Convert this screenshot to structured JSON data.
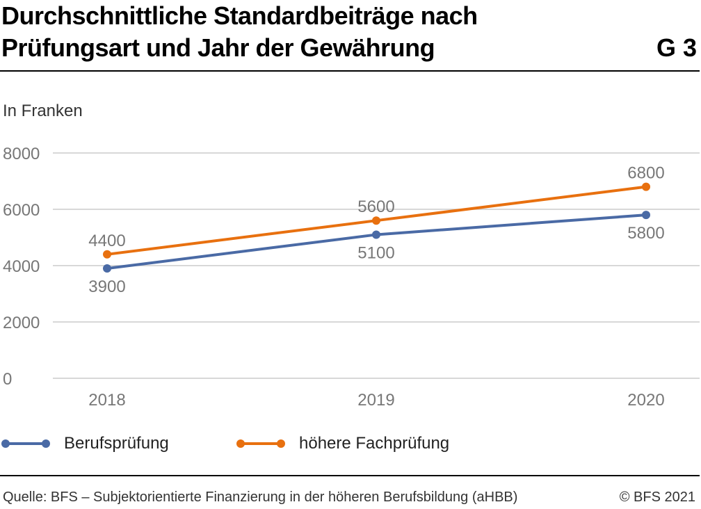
{
  "header": {
    "title_line1": "Durchschnittliche Standardbeiträge nach",
    "title_line2": "Prüfungsart und Jahr der Gewährung",
    "figure_id": "G 3"
  },
  "unit_label": "In Franken",
  "footer": {
    "source": "Quelle: BFS – Subjektorientierte Finanzierung in der höheren Berufsbildung (aHBB)",
    "copyright": "© BFS 2021"
  },
  "colors": {
    "berufspruefung": "#4a6aa5",
    "hoehere_fachpruefung": "#e8700f",
    "grid": "#cccccc",
    "tick_text": "#777777"
  },
  "chart_data": {
    "type": "line",
    "title": "Durchschnittliche Standardbeiträge nach Prüfungsart und Jahr der Gewährung",
    "ylabel": "In Franken",
    "xlabel": "",
    "x": [
      "2018",
      "2019",
      "2020"
    ],
    "ylim": [
      0,
      8000
    ],
    "yticks": [
      0,
      2000,
      4000,
      6000,
      8000
    ],
    "grid": true,
    "legend_position": "bottom",
    "series": [
      {
        "name": "Berufsprüfung",
        "values": [
          3900,
          5100,
          5800
        ],
        "color": "#4a6aa5",
        "label_side": "below"
      },
      {
        "name": "höhere Fachprüfung",
        "values": [
          4400,
          5600,
          6800
        ],
        "color": "#e8700f",
        "label_side": "above"
      }
    ]
  }
}
